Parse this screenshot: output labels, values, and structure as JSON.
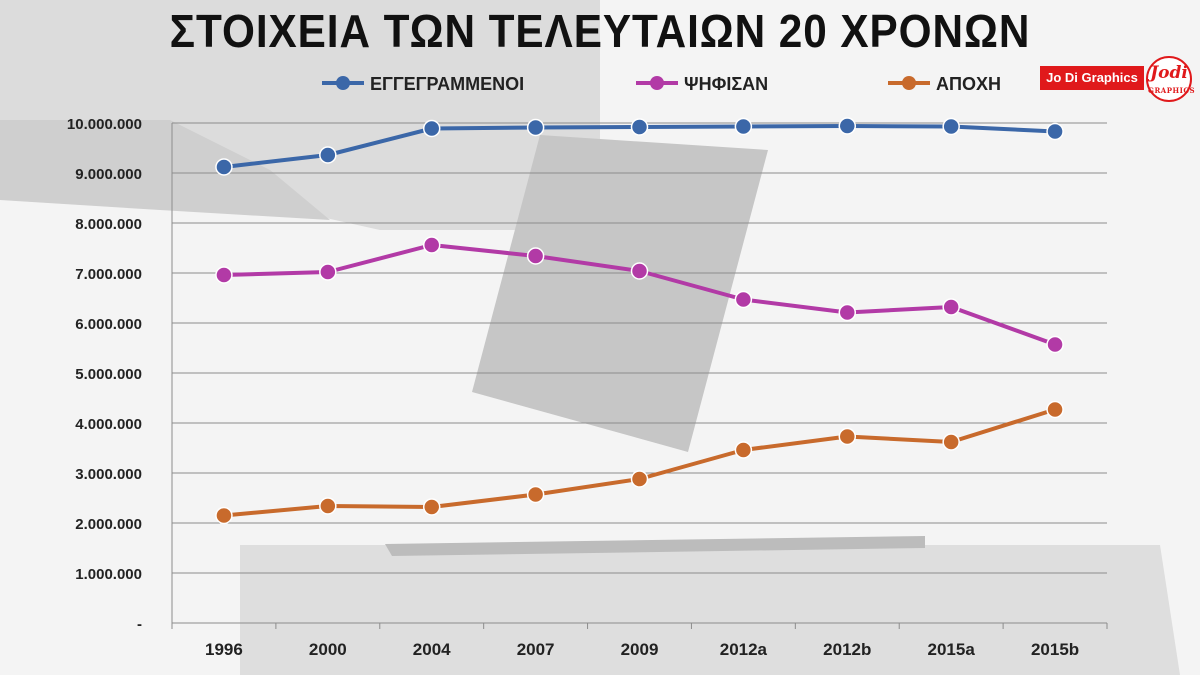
{
  "header": {
    "title": "ΣΤΟΙΧΕΙΑ ΤΩΝ ΤΕΛΕΥΤΑΙΩΝ 20 ΧΡΟΝΩΝ",
    "badge": "Jo Di Graphics",
    "logo_text": "Jodi",
    "logo_subtext": "GRAPHICS"
  },
  "chart_data": {
    "type": "line",
    "title": "ΣΤΟΙΧΕΙΑ ΤΩΝ ΤΕΛΕΥΤΑΙΩΝ 20 ΧΡΟΝΩΝ",
    "categories": [
      "1996",
      "2000",
      "2004",
      "2007",
      "2009",
      "2012a",
      "2012b",
      "2015a",
      "2015b"
    ],
    "ylim": [
      0,
      10000000
    ],
    "yticks": [
      0,
      1000000,
      2000000,
      3000000,
      4000000,
      5000000,
      6000000,
      7000000,
      8000000,
      9000000,
      10000000
    ],
    "ytick_labels": [
      "-",
      "1.000.000",
      "2.000.000",
      "3.000.000",
      "4.000.000",
      "5.000.000",
      "6.000.000",
      "7.000.000",
      "8.000.000",
      "9.000.000",
      "10.000.000"
    ],
    "grid": true,
    "legend": "top",
    "series": [
      {
        "name": "ΕΓΓΕΓΡΑΜΜΕΝΟΙ",
        "color": "#3b67a8",
        "values": [
          9120000,
          9360000,
          9890000,
          9910000,
          9920000,
          9930000,
          9940000,
          9930000,
          9830000
        ]
      },
      {
        "name": "ΨΗΦΙΣΑΝ",
        "color": "#b23aa6",
        "values": [
          6960000,
          7020000,
          7560000,
          7340000,
          7040000,
          6470000,
          6210000,
          6320000,
          5570000
        ]
      },
      {
        "name": "ΑΠΟΧΗ",
        "color": "#c86a2c",
        "values": [
          2150000,
          2340000,
          2320000,
          2570000,
          2880000,
          3460000,
          3730000,
          3620000,
          4270000
        ]
      }
    ]
  }
}
